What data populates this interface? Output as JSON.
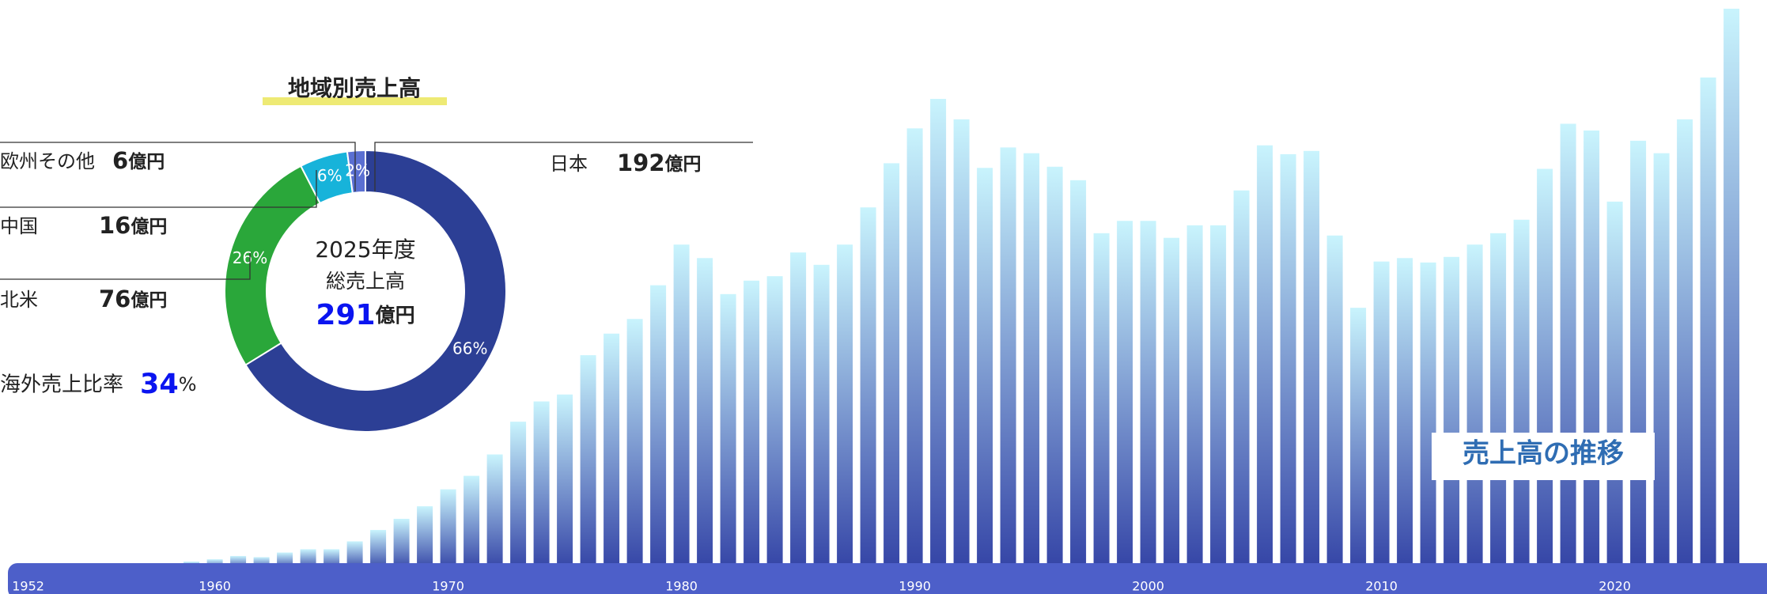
{
  "chart_data": [
    {
      "type": "donut",
      "title": "地域別売上高",
      "categories": [
        "日本",
        "北米",
        "中国",
        "欧州その他"
      ],
      "values": [
        192,
        76,
        16,
        6
      ],
      "unit": "億円",
      "percent_labels": [
        "66%",
        "26%",
        "6%",
        "2%"
      ],
      "colors": [
        "#2c3f95",
        "#2aa73a",
        "#17b3da",
        "#5a6fd2"
      ],
      "center_lines": [
        "2025年度",
        "総売上高"
      ],
      "total": 291,
      "total_unit": "億円",
      "overseas_label": "海外売上比率",
      "overseas_ratio": 34,
      "overseas_unit": "%"
    },
    {
      "type": "bar",
      "title": "売上高の推移",
      "categories": [
        "1952",
        null,
        null,
        null,
        null,
        null,
        null,
        null,
        "1960",
        null,
        null,
        null,
        null,
        null,
        null,
        null,
        null,
        null,
        "1970",
        null,
        null,
        null,
        null,
        null,
        null,
        null,
        null,
        null,
        "1980",
        null,
        null,
        null,
        null,
        null,
        null,
        null,
        null,
        null,
        "1990",
        null,
        null,
        null,
        null,
        null,
        null,
        null,
        null,
        null,
        "2000",
        null,
        null,
        null,
        null,
        null,
        null,
        null,
        null,
        null,
        "2010",
        null,
        null,
        null,
        null,
        null,
        null,
        null,
        null,
        null,
        "2020",
        null,
        null,
        null,
        null,
        null
      ],
      "values": [
        0.6,
        0.6,
        0.6,
        1.8,
        2.3,
        2.3,
        2.9,
        4.1,
        5.3,
        7.0,
        6.4,
        8.8,
        10.5,
        10.5,
        14.6,
        20.5,
        26.3,
        32.8,
        41.6,
        48.6,
        59.7,
        76.7,
        87.2,
        90.8,
        111.2,
        122.4,
        130.0,
        147.5,
        168.6,
        161.6,
        142.9,
        149.9,
        152.2,
        164.5,
        158.1,
        168.6,
        187.9,
        210.8,
        228.9,
        244.2,
        233.6,
        208.4,
        219.0,
        216.0,
        209.0,
        202.0,
        174.5,
        180.9,
        180.9,
        172.1,
        178.6,
        178.6,
        196.7,
        220.1,
        215.5,
        217.2,
        173.3,
        135.8,
        159.8,
        161.6,
        159.3,
        162.2,
        168.6,
        174.5,
        181.5,
        207.9,
        231.3,
        227.8,
        190.9,
        222.5,
        216.0,
        233.6,
        255.3,
        291
      ],
      "color_top": "#c9f4fd",
      "color_bottom": "#3444a6",
      "axis_color": "#4d5fc9"
    }
  ]
}
